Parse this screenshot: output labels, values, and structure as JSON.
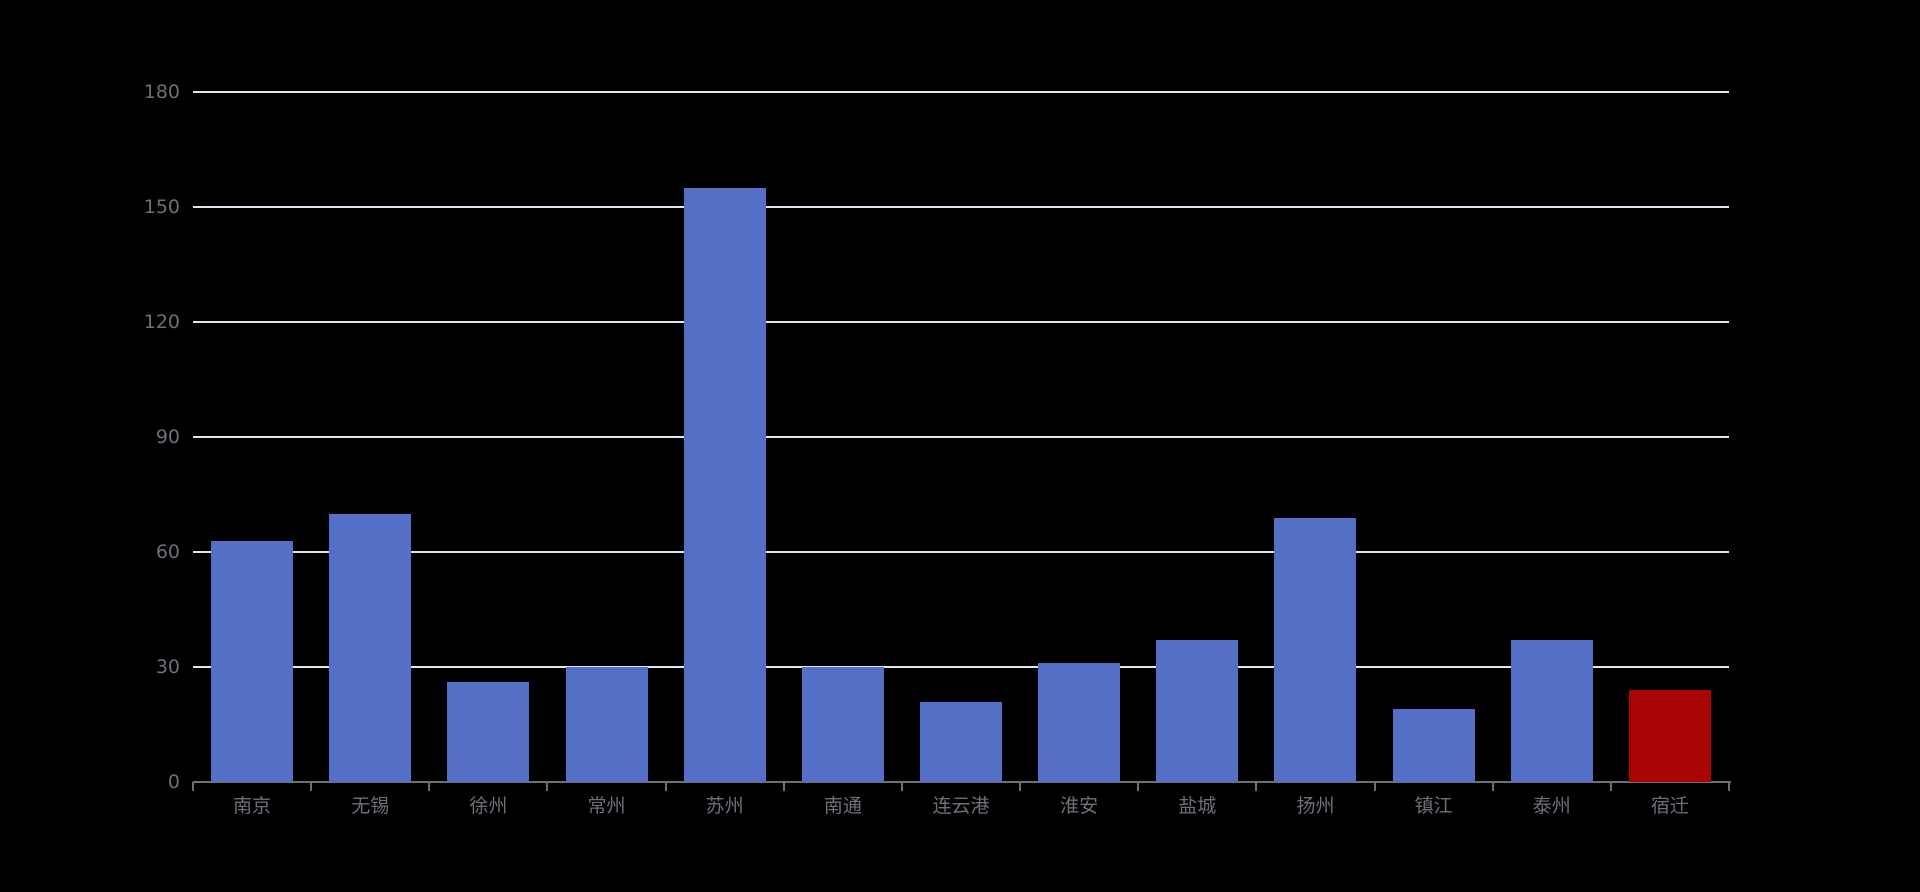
{
  "chart_data": {
    "type": "bar",
    "title": "",
    "xlabel": "",
    "ylabel": "",
    "categories": [
      "南京",
      "无锡",
      "徐州",
      "常州",
      "苏州",
      "南通",
      "连云港",
      "淮安",
      "盐城",
      "扬州",
      "镇江",
      "泰州",
      "宿迁"
    ],
    "values": [
      63,
      70,
      26,
      30,
      155,
      30,
      21,
      31,
      37,
      69,
      19,
      37,
      24
    ],
    "highlight_index": 12,
    "highlight_category": "宿迁",
    "y_ticks": [
      0,
      30,
      60,
      90,
      120,
      150,
      180
    ],
    "ylim": [
      0,
      180
    ],
    "grid": true,
    "legend": false,
    "colors": {
      "background": "#000000",
      "bar_default": "#5470C6",
      "bar_highlight": "#AA0505",
      "gridline": "#E0E6F1",
      "axis_line": "#6E7079",
      "tick_label": "#6E7079"
    }
  }
}
